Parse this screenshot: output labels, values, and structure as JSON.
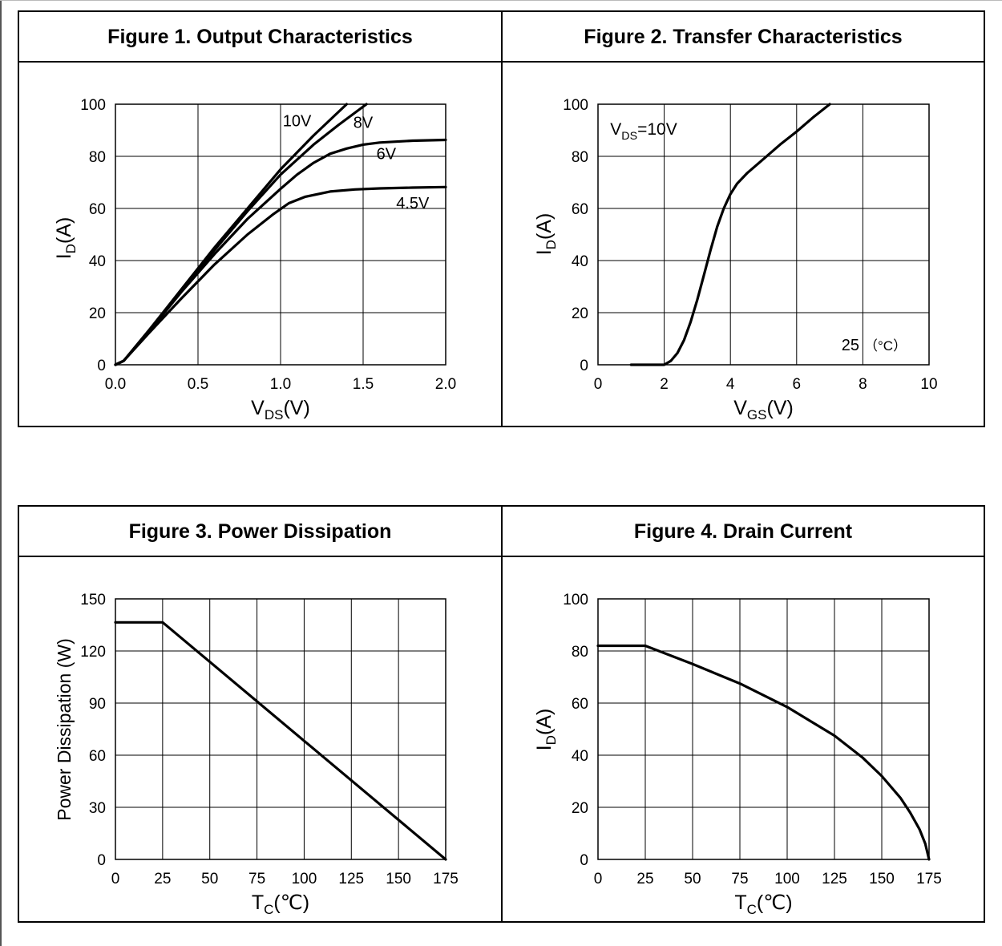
{
  "figures": [
    {
      "title": "Figure 1. Output Characteristics"
    },
    {
      "title": "Figure 2. Transfer Characteristics"
    },
    {
      "title": "Figure 3. Power Dissipation"
    },
    {
      "title": "Figure 4. Drain Current"
    }
  ],
  "chart_data": [
    {
      "type": "line",
      "title": "Figure 1. Output Characteristics",
      "xlabel": {
        "main": "V",
        "sub": "DS",
        "rest": "(V)"
      },
      "ylabel": {
        "main": "I",
        "sub": "D",
        "rest": "(A)"
      },
      "xlim": [
        0,
        2.0
      ],
      "ylim": [
        0,
        100
      ],
      "xticks": [
        0.0,
        0.5,
        1.0,
        1.5,
        2.0
      ],
      "xtick_labels": [
        "0.0",
        "0.5",
        "1.0",
        "1.5",
        "2.0"
      ],
      "yticks": [
        0,
        20,
        40,
        60,
        80,
        100
      ],
      "ytick_labels": [
        "0",
        "20",
        "40",
        "60",
        "80",
        "100"
      ],
      "grid": true,
      "series": [
        {
          "name": "10V",
          "x": [
            0,
            0.05,
            0.2,
            0.4,
            0.6,
            0.8,
            1.0,
            1.2,
            1.4
          ],
          "y": [
            0,
            1.5,
            13,
            29,
            45,
            60,
            75,
            88,
            100
          ]
        },
        {
          "name": "8V",
          "x": [
            0,
            0.05,
            0.2,
            0.4,
            0.6,
            0.8,
            1.0,
            1.2,
            1.35,
            1.52
          ],
          "y": [
            0,
            1.5,
            13,
            28.5,
            44,
            59,
            73,
            84.5,
            92,
            100
          ]
        },
        {
          "name": "6V",
          "x": [
            0,
            0.05,
            0.2,
            0.4,
            0.6,
            0.8,
            1.0,
            1.1,
            1.2,
            1.3,
            1.4,
            1.5,
            1.6,
            1.8,
            2.0
          ],
          "y": [
            0,
            1.5,
            12.5,
            28,
            42.5,
            56,
            67.5,
            73,
            77.5,
            81,
            83,
            84.5,
            85.3,
            86,
            86.3
          ]
        },
        {
          "name": "4.5V",
          "x": [
            0,
            0.05,
            0.2,
            0.4,
            0.6,
            0.8,
            0.95,
            1.05,
            1.15,
            1.3,
            1.45,
            1.6,
            1.8,
            2.0
          ],
          "y": [
            0,
            1.5,
            12,
            25.5,
            38.5,
            50,
            57.5,
            62,
            64.5,
            66.5,
            67.3,
            67.7,
            68,
            68.2
          ]
        }
      ],
      "annotations": [
        "10V",
        "8V",
        "6V",
        "4.5V"
      ]
    },
    {
      "type": "line",
      "title": "Figure 2. Transfer Characteristics",
      "xlabel": {
        "main": "V",
        "sub": "GS",
        "rest": "(V)"
      },
      "ylabel": {
        "main": "I",
        "sub": "D",
        "rest": "(A)"
      },
      "xlim": [
        0,
        10
      ],
      "ylim": [
        0,
        100
      ],
      "xticks": [
        0,
        2,
        4,
        6,
        8,
        10
      ],
      "xtick_labels": [
        "0",
        "2",
        "4",
        "6",
        "8",
        "10"
      ],
      "yticks": [
        0,
        20,
        40,
        60,
        80,
        100
      ],
      "ytick_labels": [
        "0",
        "20",
        "40",
        "60",
        "80",
        "100"
      ],
      "grid": true,
      "series": [
        {
          "name": "25",
          "x": [
            1.0,
            2.0,
            2.2,
            2.4,
            2.6,
            2.8,
            3.0,
            3.2,
            3.4,
            3.6,
            3.8,
            4.0,
            4.2,
            4.5,
            5.0,
            5.5,
            6.0,
            6.5,
            7.0
          ],
          "y": [
            0,
            0,
            1.5,
            4.5,
            9.5,
            16.5,
            25,
            34.5,
            44,
            53,
            60,
            65.5,
            69.5,
            73.5,
            79,
            84.5,
            89.5,
            95,
            100
          ]
        }
      ],
      "annotations": [
        "25",
        "(°C)"
      ],
      "condition": {
        "main": "V",
        "sub": "DS",
        "rest": "=10V"
      },
      "temp_label": "25",
      "temp_unit": "（°C）"
    },
    {
      "type": "line",
      "title": "Figure 3. Power Dissipation",
      "xlabel": {
        "main": "T",
        "sub": "C",
        "rest": "(℃)"
      },
      "ylabel": {
        "main": "Power Dissipation (W)",
        "sub": "",
        "rest": ""
      },
      "xlim": [
        0,
        175
      ],
      "ylim": [
        0,
        150
      ],
      "xticks": [
        0,
        25,
        50,
        75,
        100,
        125,
        150,
        175
      ],
      "xtick_labels": [
        "0",
        "25",
        "50",
        "75",
        "100",
        "125",
        "150",
        "175"
      ],
      "yticks": [
        0,
        30,
        60,
        90,
        120,
        150
      ],
      "ytick_labels": [
        "0",
        "30",
        "60",
        "90",
        "120",
        "150"
      ],
      "grid": true,
      "series": [
        {
          "x": [
            0,
            25,
            175
          ],
          "y": [
            136.5,
            136.5,
            0
          ]
        }
      ]
    },
    {
      "type": "line",
      "title": "Figure 4. Drain Current",
      "xlabel": {
        "main": "T",
        "sub": "C",
        "rest": "(℃)"
      },
      "ylabel": {
        "main": "I",
        "sub": "D",
        "rest": "(A)"
      },
      "xlim": [
        0,
        175
      ],
      "ylim": [
        0,
        100
      ],
      "xticks": [
        0,
        25,
        50,
        75,
        100,
        125,
        150,
        175
      ],
      "xtick_labels": [
        "0",
        "25",
        "50",
        "75",
        "100",
        "125",
        "150",
        "175"
      ],
      "yticks": [
        0,
        20,
        40,
        60,
        80,
        100
      ],
      "ytick_labels": [
        "0",
        "20",
        "40",
        "60",
        "80",
        "100"
      ],
      "grid": true,
      "series": [
        {
          "x": [
            0,
            25,
            50,
            75,
            100,
            125,
            140,
            150,
            160,
            165,
            170,
            173,
            175
          ],
          "y": [
            82,
            82,
            75,
            67.5,
            58.5,
            47.5,
            39,
            32,
            23.5,
            18,
            11.5,
            6,
            0
          ]
        }
      ]
    }
  ]
}
